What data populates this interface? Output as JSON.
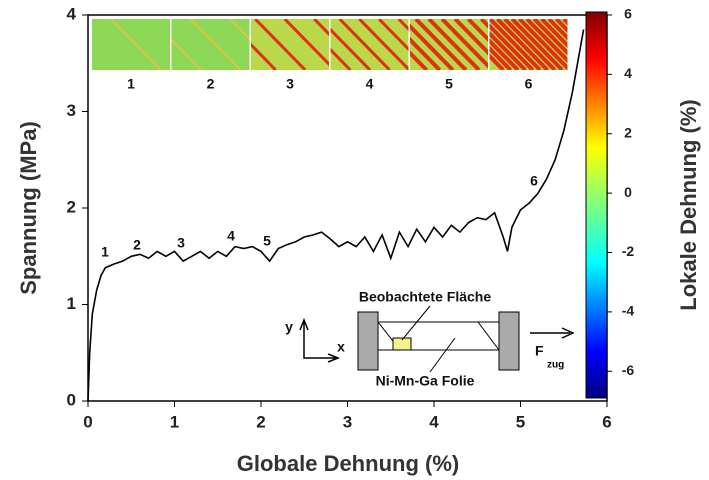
{
  "chart_data": {
    "type": "line",
    "x_label": "Globale Dehnung (%)",
    "y_label": "Spannung (MPa)",
    "x": [
      0,
      0.02,
      0.05,
      0.1,
      0.15,
      0.2,
      0.3,
      0.4,
      0.5,
      0.6,
      0.7,
      0.8,
      0.9,
      1.0,
      1.1,
      1.2,
      1.3,
      1.4,
      1.5,
      1.6,
      1.7,
      1.8,
      1.9,
      2.0,
      2.1,
      2.2,
      2.3,
      2.4,
      2.5,
      2.6,
      2.7,
      2.8,
      2.9,
      3.0,
      3.1,
      3.2,
      3.3,
      3.4,
      3.5,
      3.6,
      3.7,
      3.8,
      3.9,
      4.0,
      4.1,
      4.2,
      4.3,
      4.4,
      4.5,
      4.6,
      4.7,
      4.8,
      4.85,
      4.9,
      5.0,
      5.1,
      5.2,
      5.3,
      5.4,
      5.5,
      5.6,
      5.7,
      5.73
    ],
    "series": [
      {
        "name": "Spannung",
        "color": "#000000",
        "values": [
          0,
          0.5,
          0.9,
          1.15,
          1.3,
          1.38,
          1.42,
          1.45,
          1.5,
          1.52,
          1.48,
          1.55,
          1.5,
          1.55,
          1.45,
          1.5,
          1.55,
          1.48,
          1.55,
          1.5,
          1.6,
          1.58,
          1.6,
          1.55,
          1.45,
          1.58,
          1.62,
          1.65,
          1.7,
          1.72,
          1.75,
          1.68,
          1.6,
          1.65,
          1.6,
          1.7,
          1.55,
          1.72,
          1.48,
          1.75,
          1.6,
          1.78,
          1.65,
          1.8,
          1.7,
          1.82,
          1.75,
          1.85,
          1.9,
          1.88,
          1.95,
          1.7,
          1.55,
          1.8,
          1.98,
          2.05,
          2.15,
          2.3,
          2.5,
          2.8,
          3.2,
          3.7,
          3.85
        ]
      }
    ],
    "xlim": [
      0,
      6
    ],
    "ylim": [
      0,
      4
    ],
    "xticks": [
      0,
      1,
      2,
      3,
      4,
      5,
      6
    ],
    "yticks": [
      0,
      1,
      2,
      3,
      4
    ],
    "point_labels": [
      "1",
      "2",
      "3",
      "4",
      "5",
      "6"
    ],
    "image_labels": [
      "1",
      "2",
      "3",
      "4",
      "5",
      "6"
    ],
    "colorbar": {
      "label": "Lokale Dehnung (%)",
      "clim": [
        -6.9,
        6.1
      ],
      "ticks": [
        6,
        4,
        2,
        0,
        -2,
        -4,
        -6
      ]
    },
    "inset": {
      "area": "Beobachtete Fläche",
      "foil": "Ni-Mn-Ga Folie",
      "y_axis": "y",
      "x_axis": "x",
      "force": "F",
      "force_sub": "zug"
    }
  }
}
